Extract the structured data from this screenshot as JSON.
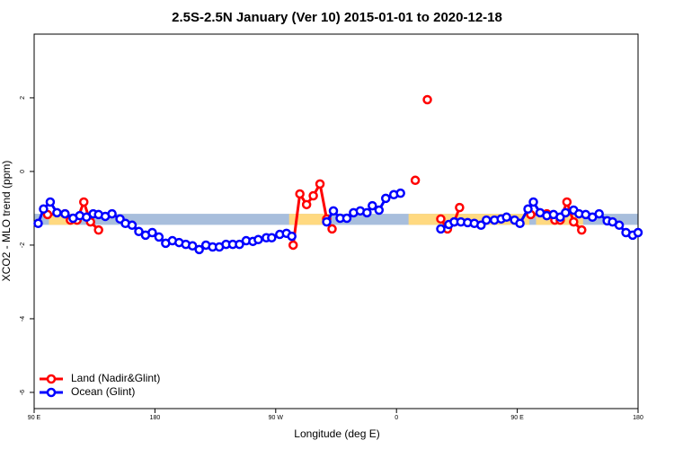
{
  "chart_data": {
    "type": "line",
    "title": "2.5S-2.5N January (Ver 10)   2015-01-01 to 2020-12-18",
    "xlabel": "Longitude (deg E)",
    "ylabel": "XCO2 - MLO trend (ppm)",
    "xlim": [
      90,
      540
    ],
    "ylim": [
      -6.44,
      3.73
    ],
    "xticks": [
      {
        "value": 90,
        "label": "90 E"
      },
      {
        "value": 180,
        "label": "180"
      },
      {
        "value": 270,
        "label": "90 W"
      },
      {
        "value": 360,
        "label": "0"
      },
      {
        "value": 450,
        "label": "90 E"
      },
      {
        "value": 540,
        "label": "180"
      }
    ],
    "yticks": [
      -6,
      -4,
      -2,
      0,
      2
    ],
    "legend": "bottom-left",
    "band": {
      "y": [
        -1.45,
        -1.15
      ],
      "color": "#a8bedc",
      "land_color": "#ffd980",
      "land_segments": [
        [
          101,
          123
        ],
        [
          280,
          309
        ],
        [
          369,
          459
        ],
        [
          464,
          499
        ]
      ]
    },
    "series": [
      {
        "name": "Land (Nadir&Glint)",
        "color": "#ff0000",
        "x": [
          100,
          113,
          117,
          122,
          127,
          132,
          138,
          null,
          283,
          288,
          293,
          298,
          303,
          308,
          312,
          null,
          374,
          null,
          383,
          null,
          393,
          398,
          403,
          407,
          null,
          460,
          472,
          478,
          482,
          487,
          492,
          498
        ],
        "values": [
          -1.17,
          -1.15,
          -1.32,
          -1.32,
          -0.83,
          -1.37,
          -1.59,
          null,
          -2.0,
          -0.61,
          -0.9,
          -0.66,
          -0.34,
          -1.29,
          -1.56,
          null,
          -0.24,
          null,
          1.95,
          null,
          -1.29,
          -1.56,
          -1.37,
          -0.98,
          null,
          -1.17,
          -1.15,
          -1.32,
          -1.32,
          -0.83,
          -1.37,
          -1.59
        ]
      },
      {
        "name": "Ocean (Glint)",
        "color": "#0000ff",
        "x": [
          93,
          97,
          102,
          107,
          113,
          119,
          124,
          129,
          134,
          138,
          143,
          148,
          154,
          158,
          163,
          168,
          173,
          178,
          183,
          188,
          193,
          198,
          203,
          208,
          213,
          218,
          223,
          228,
          233,
          238,
          243,
          248,
          253,
          257,
          263,
          267,
          273,
          278,
          282,
          null,
          308,
          313,
          318,
          323,
          328,
          333,
          338,
          342,
          347,
          352,
          358,
          363,
          null,
          393,
          399,
          403,
          408,
          413,
          418,
          423,
          427,
          433,
          438,
          442,
          448,
          452,
          458,
          462,
          467,
          472,
          477,
          482,
          486,
          492,
          496,
          501,
          506,
          511,
          517,
          521,
          526,
          531,
          536,
          540
        ],
        "values": [
          -1.41,
          -1.02,
          -0.83,
          -1.12,
          -1.15,
          -1.27,
          -1.2,
          -1.24,
          -1.15,
          -1.17,
          -1.22,
          -1.15,
          -1.29,
          -1.41,
          -1.46,
          -1.63,
          -1.73,
          -1.66,
          -1.78,
          -1.95,
          -1.88,
          -1.93,
          -1.98,
          -2.02,
          -2.12,
          -2.0,
          -2.05,
          -2.05,
          -1.98,
          -1.98,
          -1.98,
          -1.88,
          -1.9,
          -1.85,
          -1.8,
          -1.8,
          -1.71,
          -1.68,
          -1.76,
          null,
          -1.37,
          -1.07,
          -1.27,
          -1.27,
          -1.12,
          -1.07,
          -1.12,
          -0.93,
          -1.05,
          -0.73,
          -0.63,
          -0.59,
          null,
          -1.56,
          -1.44,
          -1.37,
          -1.37,
          -1.39,
          -1.41,
          -1.46,
          -1.32,
          -1.32,
          -1.29,
          -1.24,
          -1.32,
          -1.41,
          -1.02,
          -0.83,
          -1.12,
          -1.2,
          -1.17,
          -1.24,
          -1.12,
          -1.05,
          -1.15,
          -1.17,
          -1.24,
          -1.15,
          -1.34,
          -1.37,
          -1.46,
          -1.66,
          -1.73,
          -1.66
        ]
      }
    ]
  }
}
